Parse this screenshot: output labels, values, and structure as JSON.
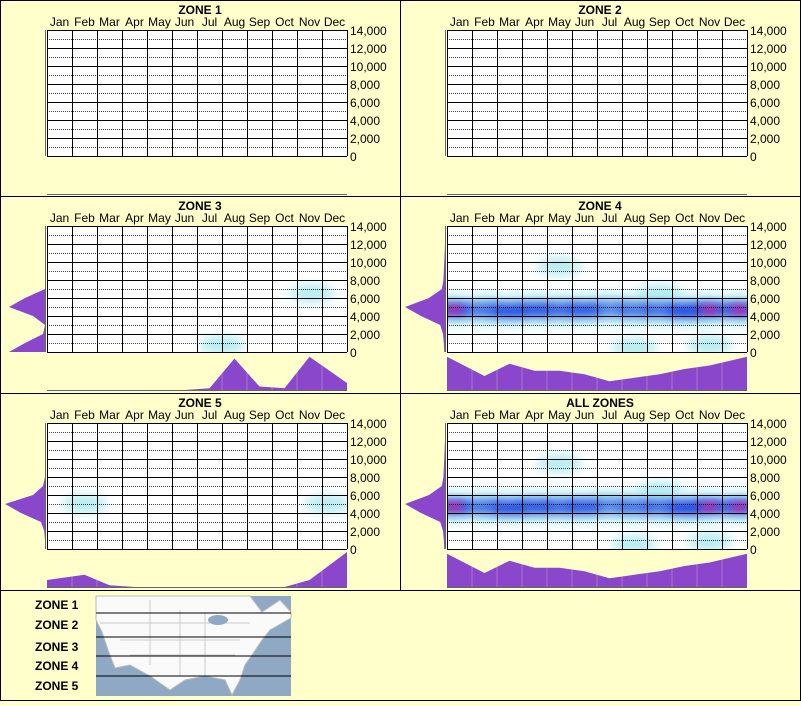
{
  "chart_data": {
    "type": "heatmap",
    "months": [
      "Jan",
      "Feb",
      "Mar",
      "Apr",
      "May",
      "Jun",
      "Jul",
      "Aug",
      "Sep",
      "Oct",
      "Nov",
      "Dec"
    ],
    "y_ticks": [
      "14,000",
      "12,000",
      "10,000",
      "8,000",
      "6,000",
      "4,000",
      "2,000",
      "0"
    ],
    "ylim": [
      0,
      14000
    ],
    "colors": {
      "low": "#aeeaf0",
      "mid": "#1a3ee0",
      "high": "#ff1e8c",
      "profile": "#8b47cc",
      "background": "#ffffcc"
    },
    "panels": [
      {
        "title": "ZONE 1",
        "hotspots": [],
        "month_profile": [],
        "elev_profile": []
      },
      {
        "title": "ZONE 2",
        "hotspots": [],
        "month_profile": [],
        "elev_profile": []
      },
      {
        "title": "ZONE 3",
        "hotspots": [
          [
            10.6,
            6500,
            0.3
          ],
          [
            7.0,
            800,
            0.3
          ]
        ],
        "month_profile": [
          0,
          0,
          0,
          0,
          0,
          0,
          0.05,
          0.9,
          0.1,
          0.05,
          0.95,
          0.2
        ],
        "elev_profile": [
          0.9,
          0.5,
          0.05,
          0,
          0.3,
          0.9,
          0.5,
          0,
          0,
          0,
          0,
          0,
          0,
          0,
          0
        ]
      },
      {
        "title": "ZONE 4",
        "hotspots": [
          [
            0.3,
            4700,
            1.0
          ],
          [
            1.5,
            4700,
            0.55
          ],
          [
            2.5,
            4600,
            0.75
          ],
          [
            3.5,
            4700,
            0.7
          ],
          [
            4.5,
            4700,
            0.6
          ],
          [
            5.5,
            4700,
            0.7
          ],
          [
            6.5,
            4800,
            0.4
          ],
          [
            7.5,
            4700,
            0.5
          ],
          [
            8.5,
            4700,
            0.55
          ],
          [
            9.5,
            4600,
            0.8
          ],
          [
            10.5,
            4700,
            0.95
          ],
          [
            11.7,
            4700,
            1.0
          ],
          [
            4.5,
            9500,
            0.15
          ],
          [
            8.5,
            6500,
            0.2
          ],
          [
            7.5,
            500,
            0.15
          ],
          [
            10.5,
            800,
            0.15
          ]
        ],
        "month_profile": [
          0.95,
          0.4,
          0.75,
          0.55,
          0.55,
          0.45,
          0.25,
          0.35,
          0.45,
          0.6,
          0.7,
          0.95
        ],
        "elev_profile": [
          0.02,
          0.03,
          0.05,
          0.12,
          0.6,
          1.0,
          0.4,
          0.08,
          0.04,
          0.03,
          0.02,
          0.01,
          0,
          0,
          0
        ]
      },
      {
        "title": "ZONE 5",
        "hotspots": [
          [
            1.5,
            5000,
            0.25
          ],
          [
            11.2,
            5000,
            0.3
          ]
        ],
        "month_profile": [
          0.2,
          0.35,
          0.05,
          0,
          0,
          0,
          0,
          0,
          0,
          0,
          0.2,
          1.0
        ],
        "elev_profile": [
          0,
          0,
          0.02,
          0.1,
          0.6,
          1.0,
          0.3,
          0.05,
          0,
          0,
          0,
          0,
          0,
          0,
          0
        ]
      },
      {
        "title": "ALL ZONES",
        "hotspots": [
          [
            0.3,
            4700,
            1.0
          ],
          [
            1.5,
            4700,
            0.55
          ],
          [
            2.5,
            4600,
            0.75
          ],
          [
            3.5,
            4700,
            0.7
          ],
          [
            4.5,
            4700,
            0.6
          ],
          [
            5.5,
            4700,
            0.7
          ],
          [
            6.5,
            4800,
            0.4
          ],
          [
            7.5,
            4700,
            0.5
          ],
          [
            8.5,
            4700,
            0.55
          ],
          [
            9.5,
            4600,
            0.8
          ],
          [
            10.5,
            4700,
            0.95
          ],
          [
            11.7,
            4700,
            1.0
          ],
          [
            4.5,
            9500,
            0.15
          ],
          [
            8.5,
            6500,
            0.2
          ],
          [
            7.5,
            500,
            0.15
          ],
          [
            10.5,
            800,
            0.15
          ]
        ],
        "month_profile": [
          0.95,
          0.4,
          0.75,
          0.55,
          0.55,
          0.45,
          0.25,
          0.35,
          0.45,
          0.6,
          0.7,
          0.95
        ],
        "elev_profile": [
          0.02,
          0.03,
          0.05,
          0.12,
          0.6,
          1.0,
          0.4,
          0.08,
          0.04,
          0.03,
          0.02,
          0.01,
          0,
          0,
          0
        ]
      }
    ]
  },
  "legend": {
    "zones": [
      "ZONE 1",
      "ZONE 2",
      "ZONE 3",
      "ZONE 4",
      "ZONE 5"
    ],
    "map": "north-america-zone-map"
  }
}
